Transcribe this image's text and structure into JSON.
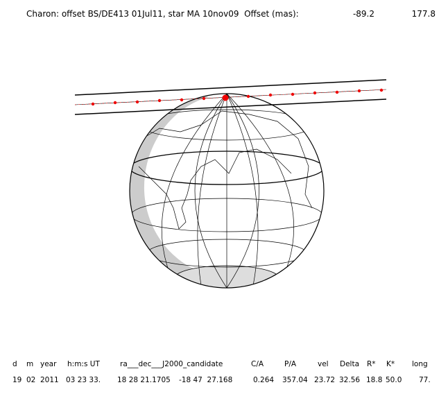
{
  "header": {
    "title": "Charon: offset BS/DE413 01Jul11, star MA 10nov09  Offset (mas):",
    "offsets": [
      -89.2,
      177.8
    ]
  },
  "table": {
    "headers": [
      "d",
      "m",
      "year",
      "h:m:s UT",
      "ra___dec___J2000_candidate",
      "C/A",
      "P/A",
      "vel",
      "Delta",
      "R*",
      "K*",
      "long"
    ],
    "values": [
      "19",
      "02",
      "2011",
      "03 23 33.",
      "18 28 21.1705",
      "-18 47  27.168",
      "0.264",
      "357.04",
      "23.72",
      "32.56",
      "18.8",
      "50.0",
      "77."
    ]
  }
}
